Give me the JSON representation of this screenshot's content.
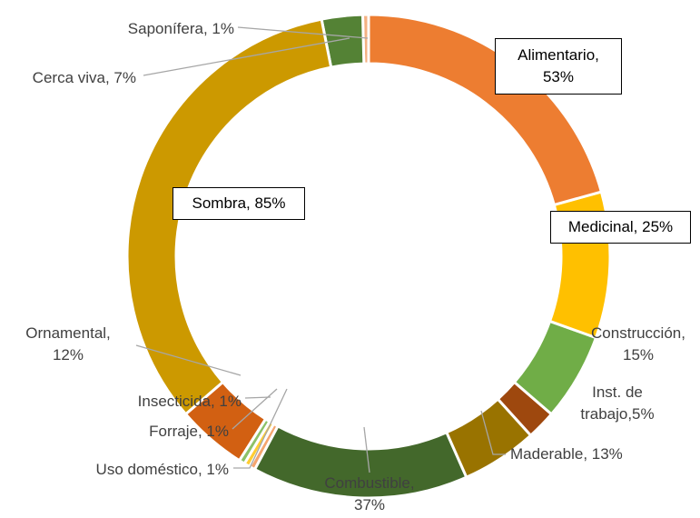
{
  "chart_data": {
    "type": "donut",
    "categories": [
      "Alimentario",
      "Medicinal",
      "Construcción",
      "Inst. de trabajo",
      "Maderable",
      "Combustible",
      "Uso doméstico",
      "Forraje",
      "Insecticida",
      "Ornamental",
      "Sombra",
      "Cerca viva",
      "Saponífera"
    ],
    "values": [
      53,
      25,
      15,
      5,
      13,
      37,
      1,
      1,
      1,
      12,
      85,
      7,
      1
    ],
    "value_labels": [
      "Alimentario,\n53%",
      "Medicinal, 25%",
      "Construcción,\n15%",
      "Inst. de\ntrabajo,5%",
      "Maderable, 13%",
      "Combustible,\n37%",
      "Uso doméstico, 1%",
      "Forraje, 1%",
      "Insecticida, 1%",
      "Ornamental,\n12%",
      "Sombra, 85%",
      "Cerca viva, 7%",
      "Saponífera, 1%"
    ],
    "colors": [
      "#ED7D31",
      "#FFC000",
      "#70AD47",
      "#9E480E",
      "#997300",
      "#43682B",
      "#F4A56E",
      "#FFCD33",
      "#8CC168",
      "#D26012",
      "#CC9900",
      "#548235",
      "#F4B183"
    ]
  }
}
